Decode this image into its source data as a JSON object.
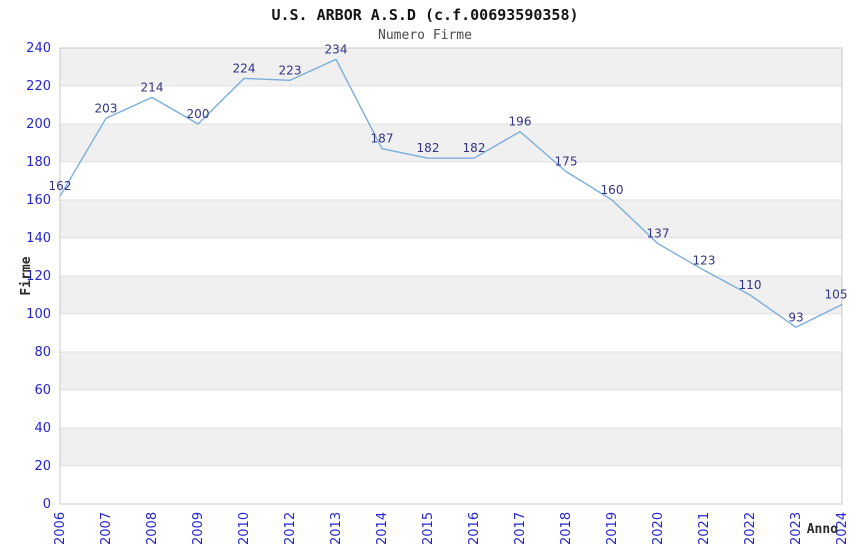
{
  "header": {
    "title": "U.S. ARBOR A.S.D (c.f.00693590358)",
    "subtitle": "Numero Firme"
  },
  "chart_data": {
    "type": "line",
    "title": "U.S. ARBOR A.S.D (c.f.00693590358)",
    "subtitle": "Numero Firme",
    "xlabel": "Anno",
    "ylabel": "Firme",
    "categories": [
      "2006",
      "2007",
      "2008",
      "2009",
      "2010",
      "2012",
      "2013",
      "2014",
      "2015",
      "2016",
      "2017",
      "2018",
      "2019",
      "2020",
      "2021",
      "2022",
      "2023",
      "2024"
    ],
    "series": [
      {
        "name": "Numero Firme",
        "values": [
          162,
          203,
          214,
          200,
          224,
          223,
          234,
          187,
          182,
          182,
          196,
          175,
          160,
          137,
          123,
          110,
          93,
          105
        ]
      }
    ],
    "ylim": [
      0,
      240
    ],
    "ytick_step": 20,
    "grid": "horizontal-bands-alternating",
    "legend": "none",
    "data_labels": "above-points",
    "colors": {
      "line": "#7aaede",
      "value_label": "#333388",
      "tick_label": "#2424d4",
      "band_gray": "#f0f0f0",
      "band_white": "#ffffff",
      "grid_line": "#e0e0e0",
      "plot_border": "#c8c8c8",
      "title": "#141414",
      "subtitle": "#4a4a4a",
      "axis_label": "#2b2b2b"
    }
  }
}
